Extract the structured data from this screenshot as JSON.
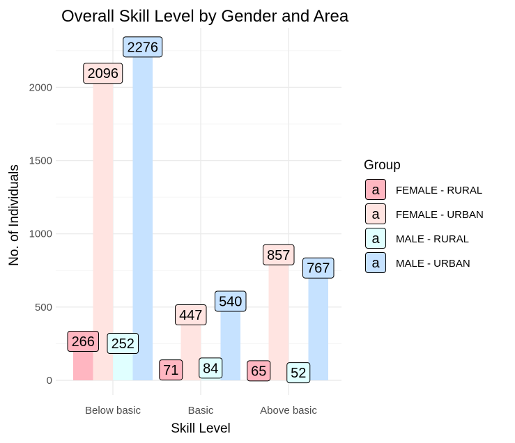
{
  "chart_data": {
    "type": "bar",
    "title": "Overall Skill Level by Gender and Area",
    "xlabel": "Skill Level",
    "ylabel": "No. of Individuals",
    "categories": [
      "Below basic",
      "Basic",
      "Above basic"
    ],
    "yticks": [
      0,
      500,
      1000,
      1500,
      2000
    ],
    "ylim": [
      -100,
      2300
    ],
    "grid": true,
    "legend": {
      "title": "Group",
      "placement": "right",
      "key_glyph": "a"
    },
    "series": [
      {
        "name": "FEMALE - RURAL",
        "color": "#ffb6c1",
        "values": [
          266,
          71,
          65
        ]
      },
      {
        "name": "FEMALE - URBAN",
        "color": "#ffe4e1",
        "values": [
          2096,
          447,
          857
        ]
      },
      {
        "name": "MALE - RURAL",
        "color": "#e0ffff",
        "values": [
          252,
          84,
          52
        ]
      },
      {
        "name": "MALE - URBAN",
        "color": "#c6e2ff",
        "values": [
          2276,
          540,
          767
        ]
      }
    ]
  }
}
